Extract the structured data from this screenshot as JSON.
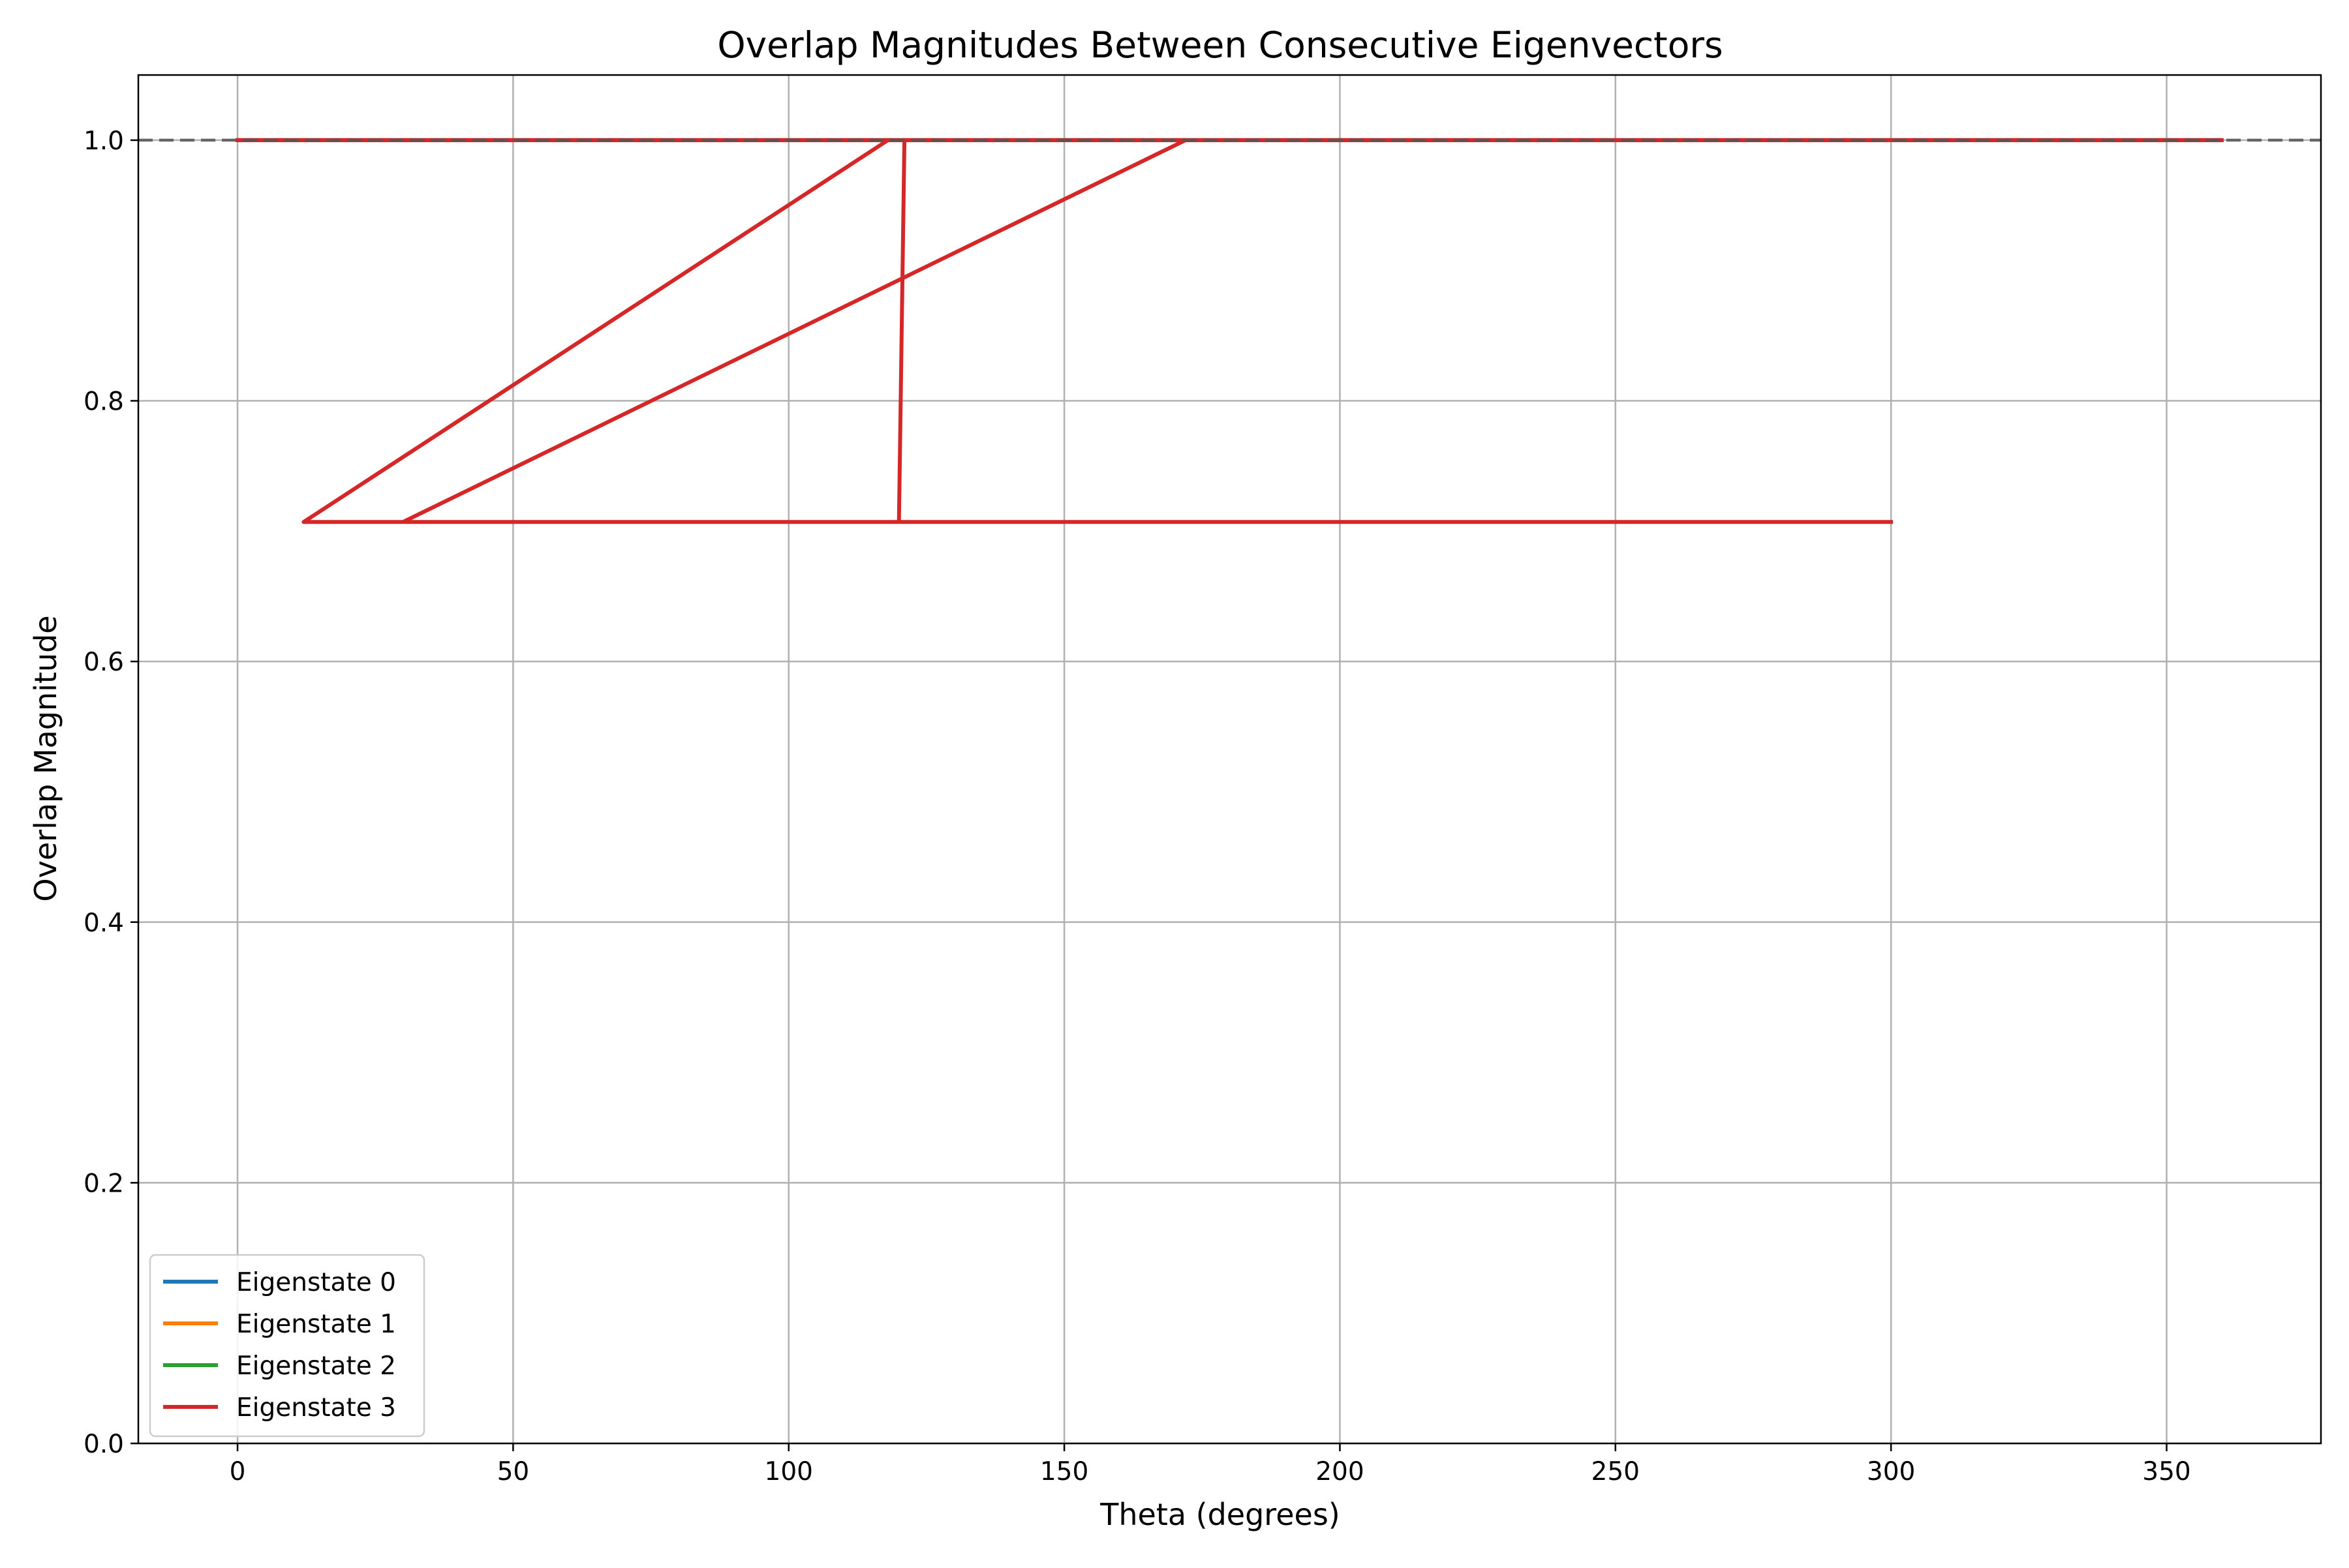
{
  "chart_data": {
    "type": "line",
    "title": "Overlap Magnitudes Between Consecutive Eigenvectors",
    "xlabel": "Theta (degrees)",
    "ylabel": "Overlap Magnitude",
    "xlim": [
      -18,
      378
    ],
    "ylim": [
      0.0,
      1.05
    ],
    "xticks": [
      "0",
      "50",
      "100",
      "150",
      "200",
      "250",
      "300",
      "350"
    ],
    "xtick_values": [
      0,
      50,
      100,
      150,
      200,
      250,
      300,
      350
    ],
    "yticks": [
      "0.0",
      "0.2",
      "0.4",
      "0.6",
      "0.8",
      "1.0"
    ],
    "ytick_values": [
      0.0,
      0.2,
      0.4,
      0.6,
      0.8,
      1.0
    ],
    "grid": true,
    "legend_position": "lower-left",
    "reference_line": {
      "y": 1.0,
      "style": "dashed",
      "color": "#555555"
    },
    "series": [
      {
        "name": "Eigenstate 0",
        "color": "#1f77b4",
        "x": [
          0,
          360
        ],
        "y": [
          1.0,
          1.0
        ]
      },
      {
        "name": "Eigenstate 1",
        "color": "#ff7f0e",
        "x": [
          0,
          360
        ],
        "y": [
          1.0,
          1.0
        ]
      },
      {
        "name": "Eigenstate 2",
        "color": "#2ca02c",
        "x": [
          0,
          360
        ],
        "y": [
          1.0,
          1.0
        ]
      },
      {
        "name": "Eigenstate 3",
        "color": "#d62728",
        "x": [
          0,
          360,
          118,
          12,
          120,
          121,
          300,
          301,
          172,
          30,
          300
        ],
        "y": [
          1.0,
          1.0,
          1.0,
          0.707,
          0.707,
          1.0,
          1.0,
          1.0,
          1.0,
          0.707,
          0.707
        ]
      }
    ]
  }
}
